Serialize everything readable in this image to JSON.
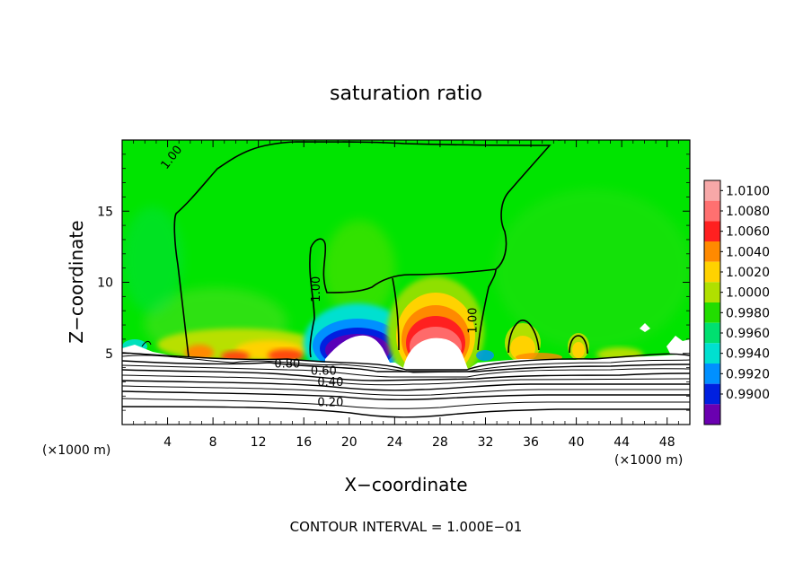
{
  "chart_data": {
    "type": "heatmap",
    "title": "saturation ratio",
    "xlabel": "X−coordinate",
    "ylabel": "Z−coordinate",
    "x_unit_left": "(×1000 m)",
    "x_unit_right": "(×1000 m)",
    "footer": "CONTOUR INTERVAL = 1.000E−01",
    "xlim": [
      0,
      50
    ],
    "ylim": [
      0,
      20
    ],
    "x_ticks": [
      4,
      8,
      12,
      16,
      20,
      24,
      28,
      32,
      36,
      40,
      44,
      48
    ],
    "x_tick_labels": [
      "4",
      "8",
      "12",
      "16",
      "20",
      "24",
      "28",
      "32",
      "36",
      "40",
      "44",
      "48"
    ],
    "y_ticks": [
      5,
      10,
      15
    ],
    "y_tick_labels": [
      "5",
      "10",
      "15"
    ],
    "colorbar": {
      "levels": [
        "1.0100",
        "1.0080",
        "1.0060",
        "1.0040",
        "1.0020",
        "1.0000",
        "0.9980",
        "0.9960",
        "0.9940",
        "0.9920",
        "0.9900"
      ],
      "colors": [
        "#f7a8a8",
        "#ff7070",
        "#ff2020",
        "#ff8a00",
        "#ffd200",
        "#b0e000",
        "#22dd00",
        "#00e070",
        "#00e0d0",
        "#0090ff",
        "#0020e0",
        "#6a00b0"
      ]
    },
    "contour_labels": [
      {
        "text": "1.00",
        "x": 3.9,
        "z": 17.9
      },
      {
        "text": "1.00",
        "x": 17.4,
        "z": 8.6
      },
      {
        "text": "1.00",
        "x": 31.2,
        "z": 6.4
      },
      {
        "text": "0.80",
        "x": 13.4,
        "z": 4.0
      },
      {
        "text": "0.60",
        "x": 16.6,
        "z": 3.5
      },
      {
        "text": "0.40",
        "x": 17.2,
        "z": 2.7
      },
      {
        "text": "0.20",
        "x": 17.2,
        "z": 1.3
      }
    ]
  }
}
